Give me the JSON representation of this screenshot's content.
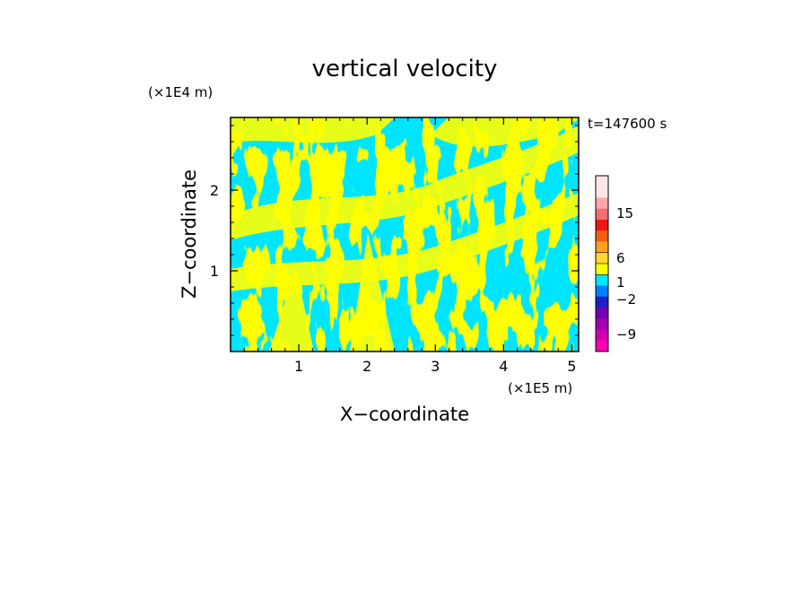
{
  "chart_data": {
    "type": "heatmap",
    "title": "vertical velocity",
    "xlabel": "X−coordinate",
    "ylabel": "Z−coordinate",
    "x_unit": "(×1E5 m)",
    "y_unit": "(×1E4 m)",
    "time_label": "t=147600 s",
    "xlim": [
      0,
      5.1
    ],
    "ylim": [
      0,
      2.9
    ],
    "x_ticks": [
      1,
      2,
      3,
      4,
      5
    ],
    "y_ticks": [
      1,
      2
    ],
    "colors": {
      "positive": "#ffff00",
      "negative": "#00e5ff"
    },
    "colorbar": {
      "labels": [
        "15",
        "6",
        "1",
        "−2",
        "−9"
      ],
      "bands": [
        "#ffe6e6",
        "#ffe6e6",
        "#f8a8a8",
        "#f07070",
        "#e81818",
        "#f06010",
        "#ffa020",
        "#ffd830",
        "#ffff00",
        "#00e5ff",
        "#0080ff",
        "#2020c0",
        "#7000b0",
        "#a000b0",
        "#d000b0",
        "#ff00b0"
      ]
    }
  }
}
